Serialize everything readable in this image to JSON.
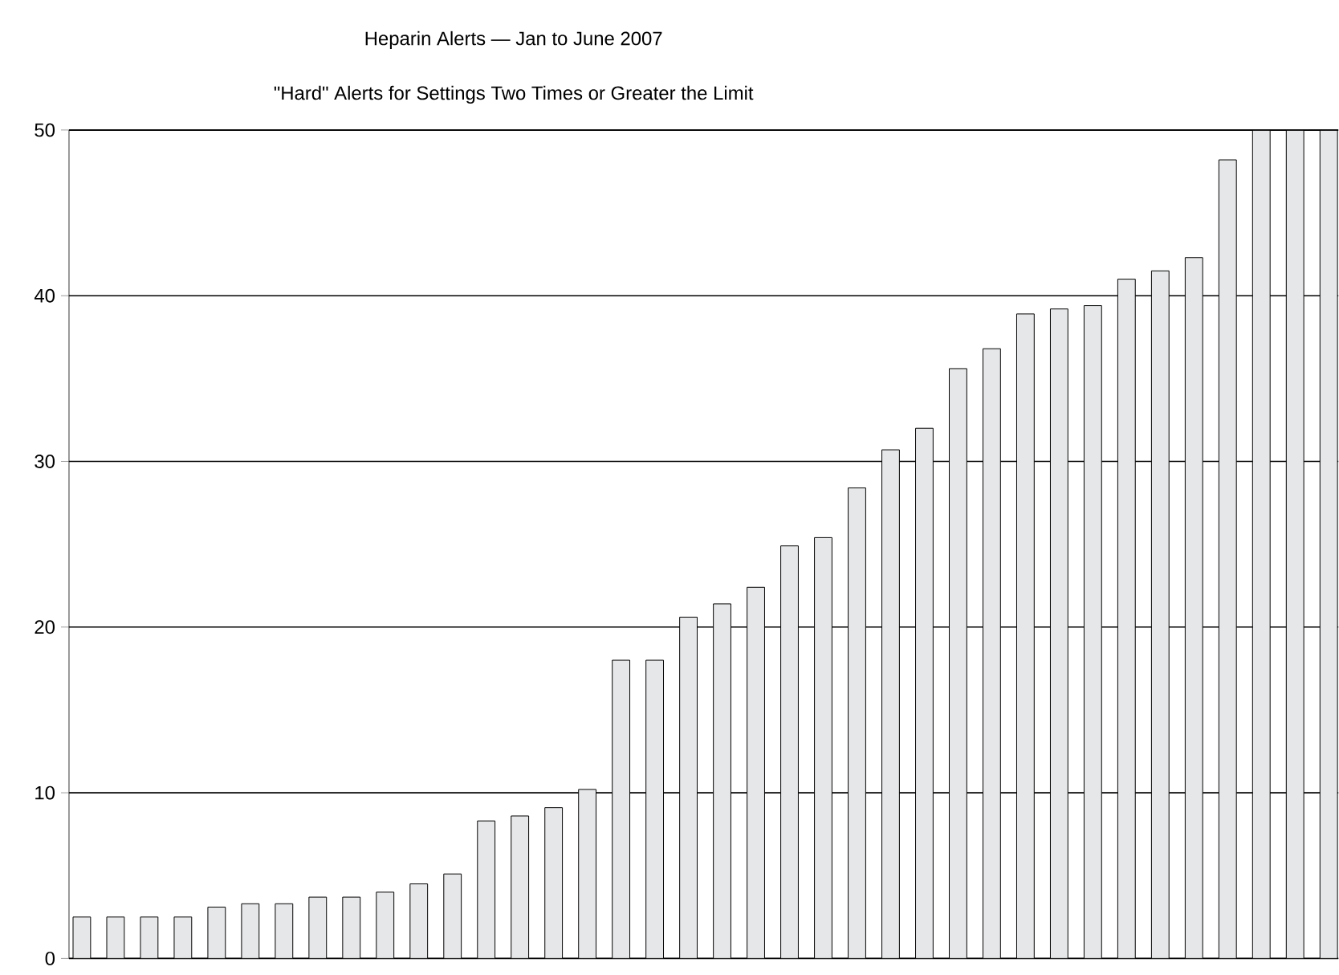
{
  "chart_data": {
    "type": "bar",
    "title": "Heparin Alerts — Jan to June 2007",
    "subtitle": "\"Hard\" Alerts for Settings Two Times or Greater the Limit",
    "categories": [
      null,
      null,
      null,
      null,
      null,
      null,
      null,
      null,
      null,
      null,
      null,
      null,
      null,
      null,
      null,
      null,
      null,
      null,
      null,
      null,
      null,
      null,
      null,
      null,
      null,
      null,
      null,
      null,
      null,
      null,
      null,
      null,
      null,
      null,
      null,
      null,
      null,
      null
    ],
    "values": [
      2.5,
      2.5,
      2.5,
      2.5,
      3.1,
      3.3,
      3.3,
      3.7,
      3.7,
      4.0,
      4.5,
      5.1,
      8.3,
      8.6,
      9.1,
      10.2,
      18,
      18,
      20.6,
      21.4,
      22.4,
      24.9,
      25.4,
      28.4,
      30.7,
      32.0,
      35.6,
      36.8,
      38.9,
      39.2,
      39.4,
      41.0,
      41.5,
      42.3,
      48.2,
      50,
      50,
      50
    ],
    "color": "#e6e7e8",
    "ylim": [
      0,
      50
    ],
    "yticks": [
      0,
      10,
      20,
      30,
      40,
      50
    ],
    "grid": "y"
  }
}
